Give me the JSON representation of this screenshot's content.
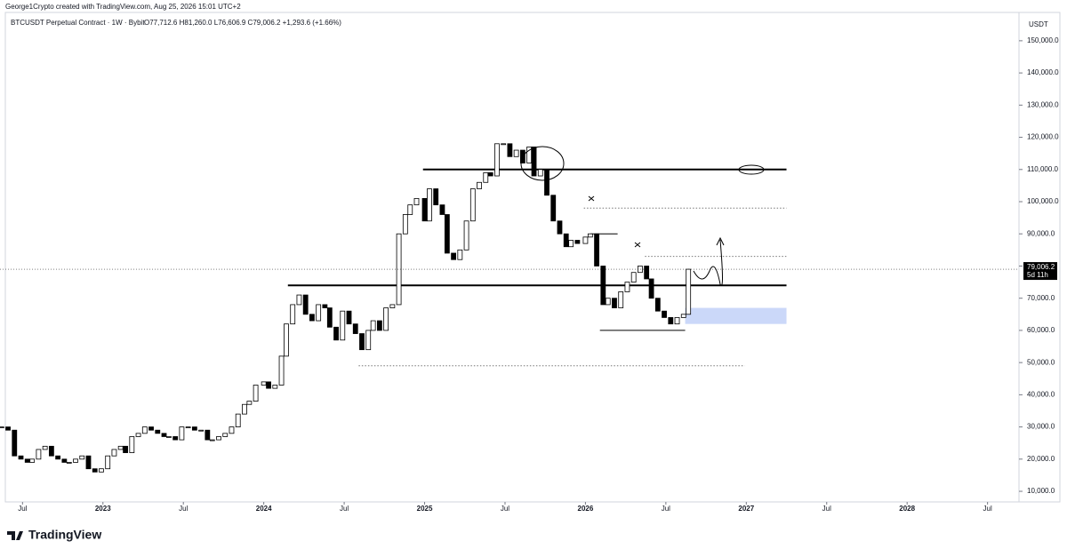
{
  "header": "George1Crypto created with TradingView.com, Aug 25, 2026 15:01 UTC+2",
  "footer": "TradingView",
  "chart_data": {
    "type": "candlestick",
    "title": "BTCUSDT Perpetual Contract · 1W · Bybit",
    "ohlc_text": "O77,712.6  H81,260.0  L76,606.9  C79,006.2  +1,293.6 (+1.66%)",
    "currency": "USDT",
    "countdown": "5d 11h",
    "last_price": {
      "value": 79006.2,
      "label": "79,006.2"
    },
    "x": [
      2022.37,
      2022.41,
      2022.45,
      2022.49,
      2022.53,
      2022.56,
      2022.6,
      2022.64,
      2022.68,
      2022.72,
      2022.76,
      2022.79,
      2022.83,
      2022.87,
      2022.91,
      2022.95,
      2022.99,
      2023.03,
      2023.07,
      2023.11,
      2023.14,
      2023.18,
      2023.22,
      2023.26,
      2023.3,
      2023.34,
      2023.38,
      2023.41,
      2023.45,
      2023.49,
      2023.53,
      2023.57,
      2023.61,
      2023.65,
      2023.68,
      2023.72,
      2023.76,
      2023.8,
      2023.84,
      2023.88,
      2023.91,
      2023.95,
      2024.0,
      2024.03,
      2024.07,
      2024.11,
      2024.14,
      2024.18,
      2024.22,
      2024.26,
      2024.3,
      2024.34,
      2024.38,
      2024.41,
      2024.45,
      2024.49,
      2024.53,
      2024.57,
      2024.61,
      2024.65,
      2024.68,
      2024.72,
      2024.76,
      2024.8,
      2024.84,
      2024.88,
      2024.91,
      2024.95,
      2025.0,
      2025.03,
      2025.07,
      2025.11,
      2025.14,
      2025.18,
      2025.22,
      2025.26,
      2025.3,
      2025.34,
      2025.38,
      2025.41,
      2025.45,
      2025.49,
      2025.53,
      2025.57,
      2025.61,
      2025.65,
      2025.68,
      2025.72,
      2025.76,
      2025.8,
      2025.84,
      2025.88,
      2025.91,
      2025.95,
      2026.0,
      2026.03,
      2026.07,
      2026.11,
      2026.14,
      2026.18,
      2026.22,
      2026.26,
      2026.3,
      2026.34,
      2026.38,
      2026.41,
      2026.45,
      2026.49,
      2026.53,
      2026.57,
      2026.61,
      2026.64
    ],
    "values": [
      30000,
      29000,
      21000,
      20000,
      19000,
      20000,
      23000,
      24000,
      21000,
      20000,
      19000,
      19000,
      20000,
      21000,
      17000,
      16000,
      17000,
      21000,
      23000,
      24000,
      22000,
      27000,
      28000,
      30000,
      29000,
      28000,
      27000,
      27000,
      26000,
      30000,
      30000,
      29000,
      29000,
      26000,
      26000,
      27000,
      28000,
      30000,
      34000,
      37000,
      38000,
      43000,
      44000,
      42000,
      43000,
      52000,
      62000,
      68000,
      71000,
      65000,
      63000,
      68000,
      67000,
      61000,
      57000,
      66000,
      62000,
      59000,
      54000,
      60000,
      63000,
      60000,
      67000,
      68000,
      90000,
      96000,
      99000,
      101000,
      94000,
      104000,
      99000,
      96000,
      84000,
      82000,
      85000,
      94000,
      104000,
      106000,
      109000,
      108000,
      118000,
      118000,
      114000,
      116000,
      112000,
      117000,
      108000,
      110000,
      102000,
      94000,
      90000,
      86000,
      88000,
      87000,
      89000,
      90000,
      80000,
      68000,
      70000,
      67000,
      72000,
      75000,
      78000,
      80000,
      76000,
      70000,
      66000,
      64000,
      62000,
      64000,
      65000,
      79006.2
    ],
    "xlim": [
      2022.36,
      2028.69
    ],
    "xticks": [
      {
        "value": 2022.5,
        "label": "Jul"
      },
      2023,
      {
        "value": 2023.5,
        "label": "Jul"
      },
      2024,
      {
        "value": 2024.5,
        "label": "Jul"
      },
      2025,
      {
        "value": 2025.5,
        "label": "Jul"
      },
      2026,
      {
        "value": 2026.5,
        "label": "Jul"
      },
      2027,
      {
        "value": 2027.5,
        "label": "Jul"
      },
      2028,
      {
        "value": 2028.5,
        "label": "Jul"
      }
    ],
    "ylim": [
      6700,
      158800
    ],
    "yticks": [
      {
        "value": 10000,
        "label": "10,000.0"
      },
      {
        "value": 20000,
        "label": "20,000.0"
      },
      {
        "value": 30000,
        "label": "30,000.0"
      },
      {
        "value": 40000,
        "label": "40,000.0"
      },
      {
        "value": 50000,
        "label": "50,000.0"
      },
      {
        "value": 60000,
        "label": "60,000.0"
      },
      {
        "value": 70000,
        "label": "70,000.0"
      },
      {
        "value": 80000,
        "label": "80,000.0"
      },
      {
        "value": 90000,
        "label": "90,000.0"
      },
      {
        "value": 100000,
        "label": "100,000.0"
      },
      {
        "value": 110000,
        "label": "110,000.0"
      },
      {
        "value": 120000,
        "label": "120,000.0"
      },
      {
        "value": 130000,
        "label": "130,000.0"
      },
      {
        "value": 140000,
        "label": "140,000.0"
      },
      {
        "value": 150000,
        "label": "150,000.0"
      }
    ],
    "levels": [
      {
        "price": 110000,
        "from": 2024.99,
        "to": 2027.25,
        "style": "thick"
      },
      {
        "price": 74000,
        "from": 2024.15,
        "to": 2027.25,
        "style": "thick"
      },
      {
        "price": 98000,
        "from": 2025.99,
        "to": 2027.25,
        "style": "dotted"
      },
      {
        "price": 83000,
        "from": 2026.37,
        "to": 2027.25,
        "style": "dotted"
      },
      {
        "price": 49000,
        "from": 2024.59,
        "to": 2026.99,
        "style": "dotted"
      },
      {
        "price": 90000,
        "from": 2026.03,
        "to": 2026.2,
        "style": "thin"
      },
      {
        "price": 60000,
        "from": 2026.09,
        "to": 2026.62,
        "style": "thin"
      }
    ],
    "zones": [
      {
        "low": 62000,
        "high": 67000,
        "from": 2026.62,
        "to": 2027.25,
        "color": "#cbd8f9"
      }
    ]
  }
}
